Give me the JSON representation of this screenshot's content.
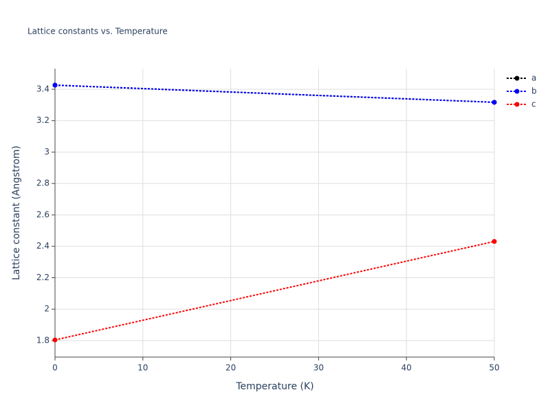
{
  "chart_data": {
    "type": "line",
    "title": "Lattice constants vs. Temperature",
    "x_label": "Temperature (K)",
    "y_label": "Lattice constant (Angstrom)",
    "x": [
      0,
      50
    ],
    "series": [
      {
        "name": "a",
        "color": "#000000",
        "values": [
          3.426,
          3.317
        ]
      },
      {
        "name": "b",
        "color": "#0000ff",
        "values": [
          3.426,
          3.317
        ]
      },
      {
        "name": "c",
        "color": "#ff0000",
        "values": [
          1.804,
          2.431
        ]
      }
    ],
    "xlim": [
      0,
      50
    ],
    "xticks": [
      0,
      10,
      20,
      30,
      40,
      50
    ],
    "ylim": [
      1.695,
      3.531
    ],
    "yticks": [
      1.8,
      2,
      2.2,
      2.4,
      2.6,
      2.8,
      3,
      3.2,
      3.4
    ],
    "grid": true,
    "line_style": "dotted",
    "legend": "outside-right"
  }
}
